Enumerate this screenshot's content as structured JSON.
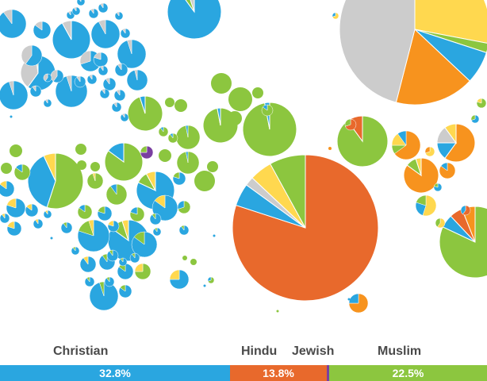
{
  "chart_data": {
    "type": "pie",
    "description_note": "",
    "categories": [
      "Christian",
      "Hindu",
      "Jewish",
      "Muslim"
    ],
    "colors": {
      "christian": "#2aa6e0",
      "hindu": "#e8692c",
      "jewish": "#7a3fa0",
      "muslim": "#8cc63f",
      "buddhist": "#f7931e",
      "folk": "#ffd84f",
      "unaffiliated": "#cccccc"
    },
    "share_bar": [
      {
        "name": "Christian",
        "value": 32.8,
        "value_label": "32.8%",
        "color": "#2aa6e0"
      },
      {
        "name": "Hindu",
        "value": 13.8,
        "value_label": "13.8%",
        "color": "#e8692c"
      },
      {
        "name": "Jewish",
        "value": 0.2,
        "value_label": "",
        "color": "#7a3fa0"
      },
      {
        "name": "Muslim",
        "value": 22.5,
        "value_label": "22.5%",
        "color": "#8cc63f"
      }
    ]
  },
  "labels": {
    "christian": "Christian",
    "hindu": "Hindu",
    "jewish": "Jewish",
    "muslim": "Muslim"
  }
}
